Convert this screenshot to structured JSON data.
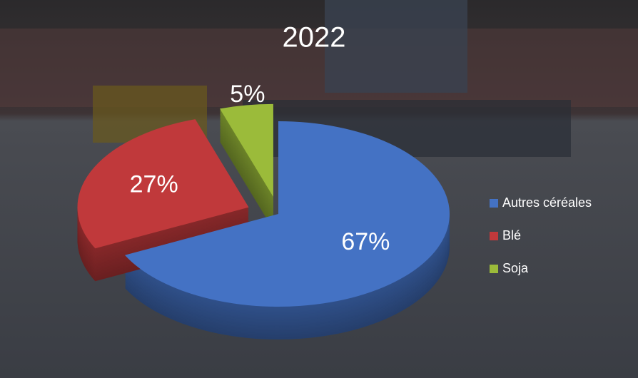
{
  "chart_data": {
    "type": "pie",
    "title": "2022",
    "categories": [
      "Autres céréales",
      "Blé",
      "Soja"
    ],
    "values": [
      67,
      27,
      5
    ],
    "value_labels": [
      "67%",
      "27%",
      "5%"
    ],
    "colors": [
      "#4472c4",
      "#c0393b",
      "#9bbb3a"
    ]
  }
}
